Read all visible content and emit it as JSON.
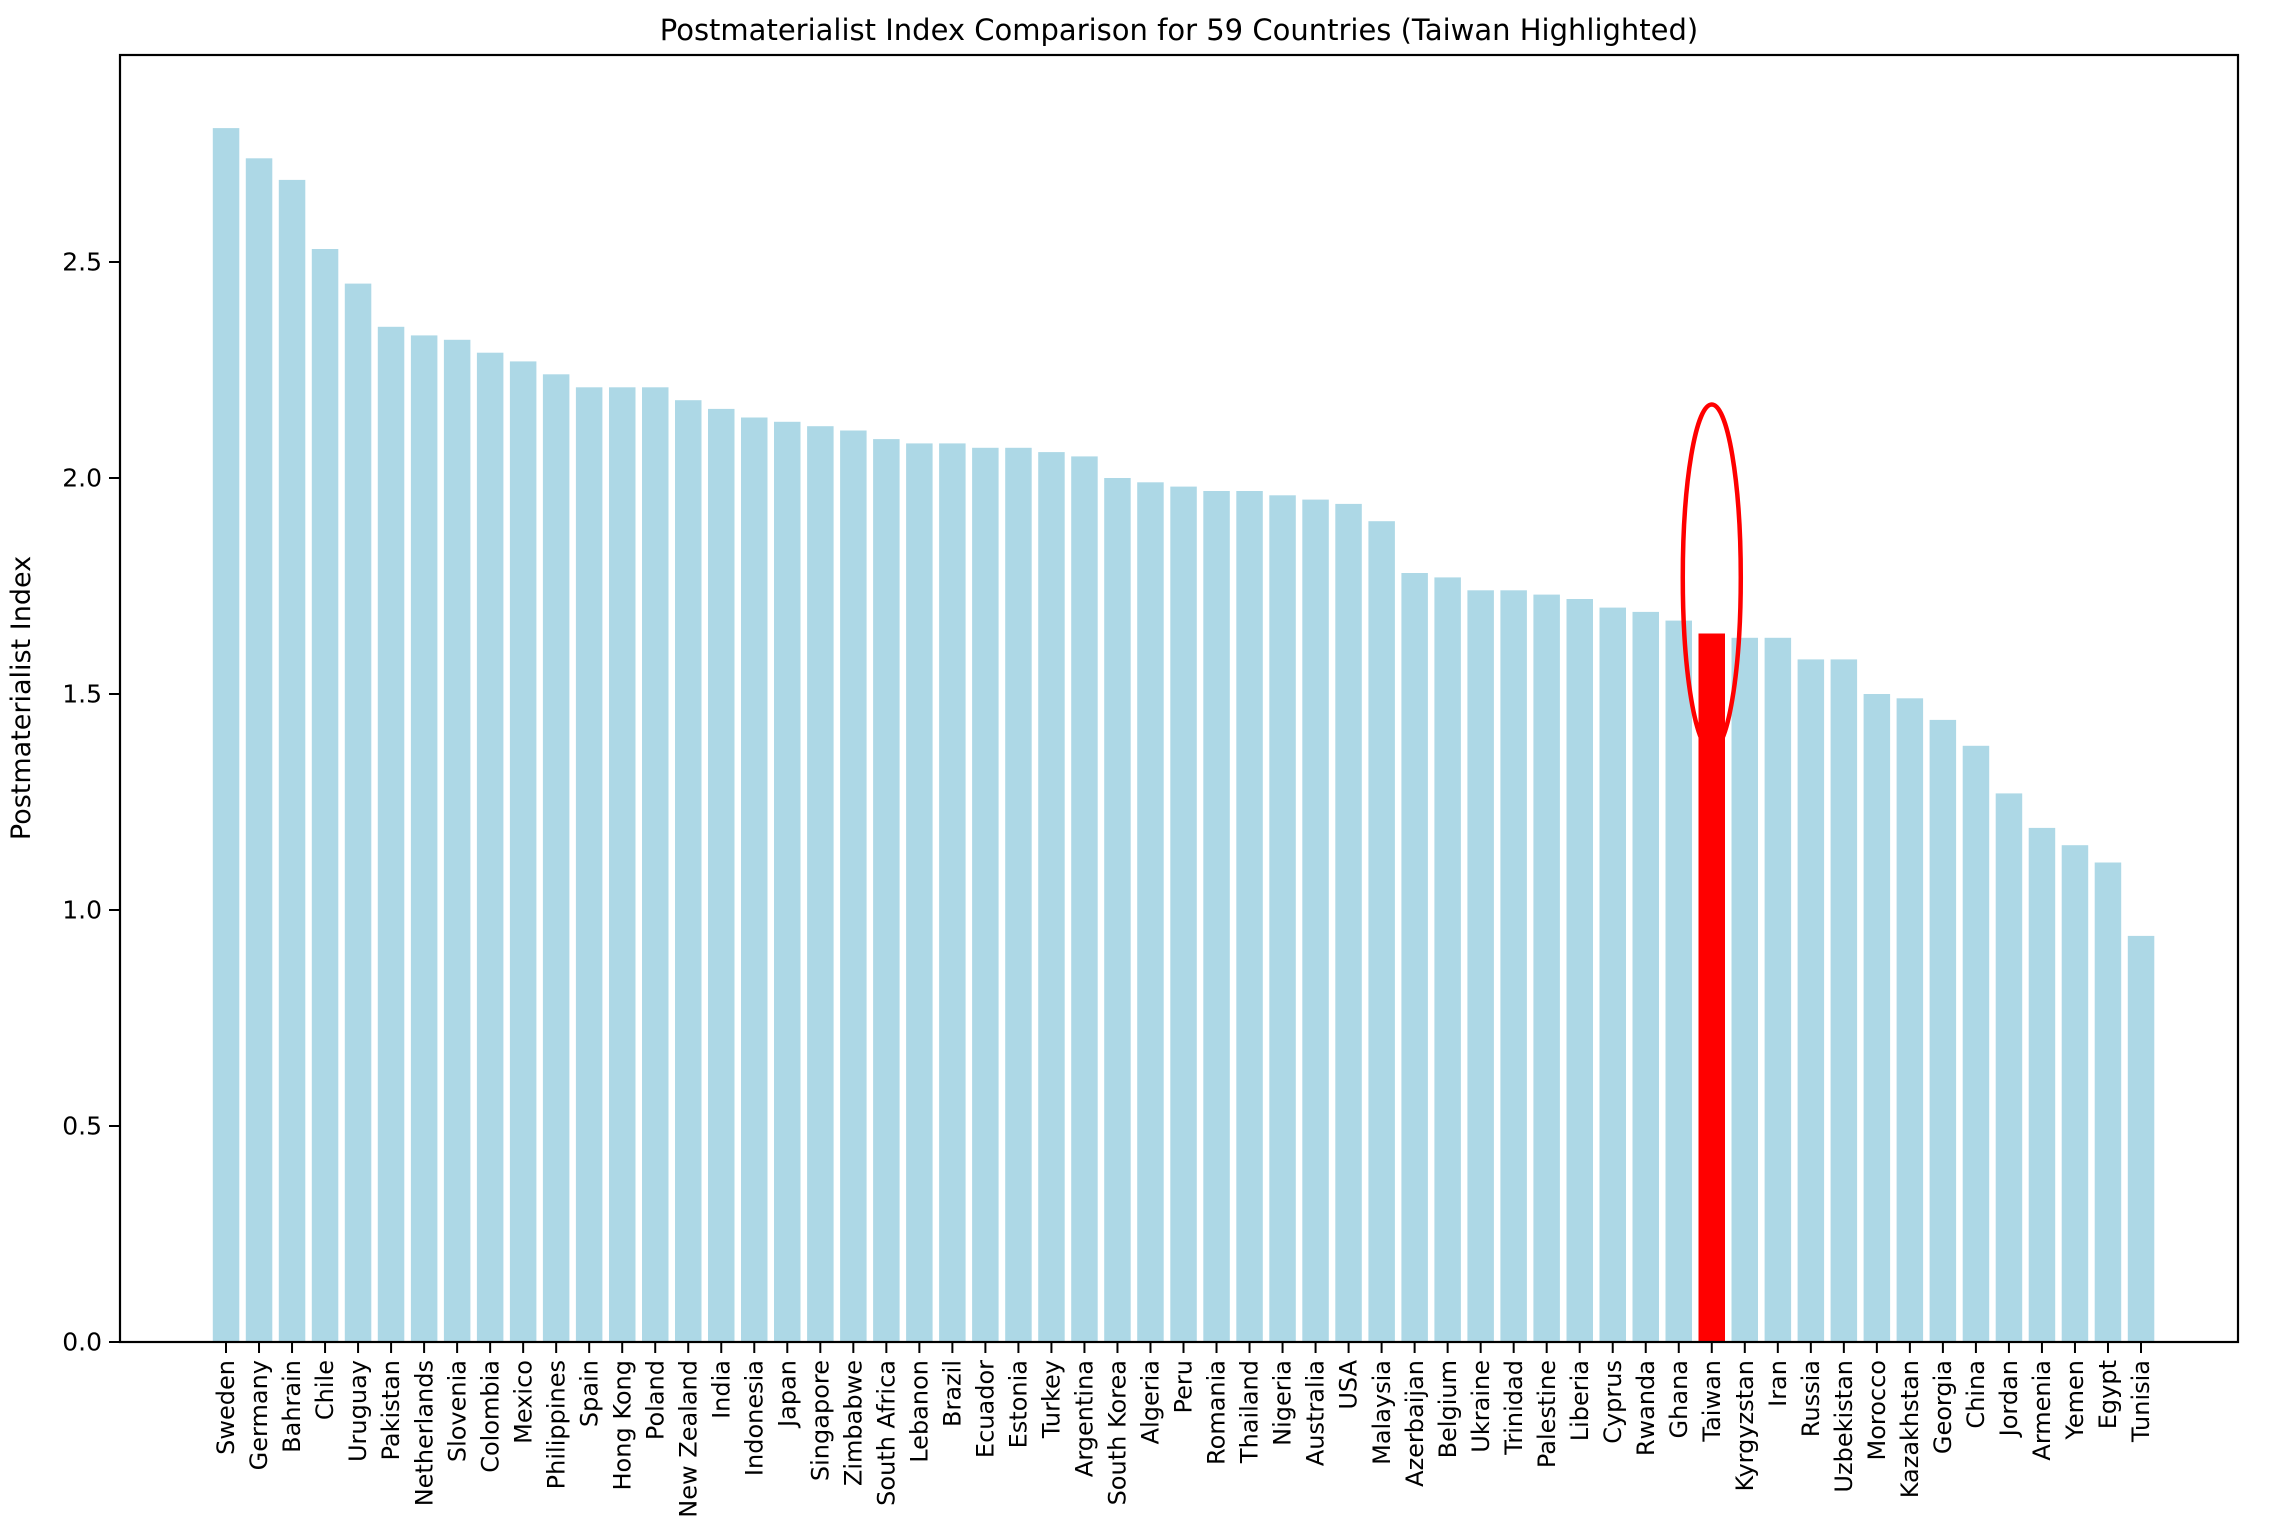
{
  "title": "Postmaterialist Index Comparison for 59 Countries (Taiwan Highlighted)",
  "ylabel": "Postmaterialist Index",
  "colors": {
    "bar": "#add8e6",
    "highlight": "#ff0000",
    "axis": "#000000",
    "background": "#ffffff"
  },
  "chart_data": {
    "type": "bar",
    "title": "Postmaterialist Index Comparison for 59 Countries (Taiwan Highlighted)",
    "xlabel": "",
    "ylabel": "Postmaterialist Index",
    "ylim": [
      0,
      2.9
    ],
    "yticks": [
      0.0,
      0.5,
      1.0,
      1.5,
      2.0,
      2.5
    ],
    "grid": false,
    "legend_position": "none",
    "bar_color": "#add8e6",
    "highlight": {
      "label": "Taiwan",
      "index": 45,
      "value": 1.64,
      "color": "#ff0000",
      "annotation": "red-ellipse-outline"
    },
    "categories": [
      "Sweden",
      "Germany",
      "Bahrain",
      "Chile",
      "Uruguay",
      "Pakistan",
      "Netherlands",
      "Slovenia",
      "Colombia",
      "Mexico",
      "Philippines",
      "Spain",
      "Hong Kong",
      "Poland",
      "New Zealand",
      "India",
      "Indonesia",
      "Japan",
      "Singapore",
      "Zimbabwe",
      "South Africa",
      "Lebanon",
      "Brazil",
      "Ecuador",
      "Estonia",
      "Turkey",
      "Argentina",
      "South Korea",
      "Algeria",
      "Peru",
      "Romania",
      "Thailand",
      "Nigeria",
      "Australia",
      "USA",
      "Malaysia",
      "Azerbaijan",
      "Belgium",
      "Ukraine",
      "Trinidad",
      "Palestine",
      "Liberia",
      "Cyprus",
      "Rwanda",
      "Ghana",
      "Taiwan",
      "Kyrgyzstan",
      "Iran",
      "Russia",
      "Uzbekistan",
      "Morocco",
      "Kazakhstan",
      "Georgia",
      "China",
      "Jordan",
      "Armenia",
      "Yemen",
      "Egypt",
      "Tunisia"
    ],
    "values": [
      2.81,
      2.74,
      2.69,
      2.53,
      2.45,
      2.35,
      2.33,
      2.32,
      2.29,
      2.27,
      2.24,
      2.21,
      2.21,
      2.21,
      2.18,
      2.16,
      2.14,
      2.13,
      2.12,
      2.11,
      2.09,
      2.08,
      2.08,
      2.07,
      2.07,
      2.06,
      2.05,
      2.0,
      1.99,
      1.98,
      1.97,
      1.97,
      1.96,
      1.95,
      1.94,
      1.9,
      1.78,
      1.77,
      1.74,
      1.74,
      1.73,
      1.72,
      1.7,
      1.69,
      1.67,
      1.64,
      1.63,
      1.63,
      1.58,
      1.58,
      1.5,
      1.49,
      1.44,
      1.38,
      1.27,
      1.19,
      1.15,
      1.11,
      0.94
    ]
  }
}
